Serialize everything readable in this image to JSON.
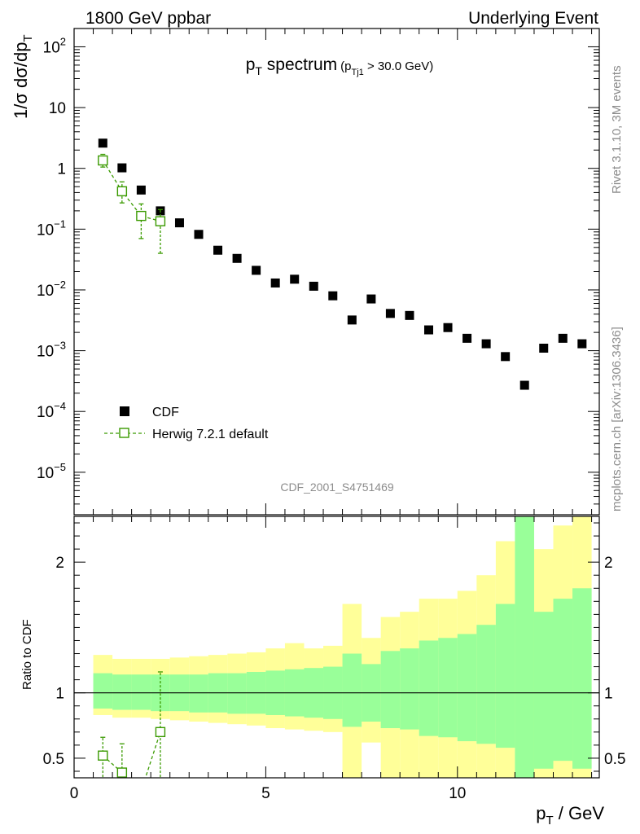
{
  "header": {
    "left": "1800 GeV ppbar",
    "right": "Underlying Event"
  },
  "side_labels": {
    "rivet": "Rivet 3.1.10,  3M events",
    "mcplots": "mcplots.cern.ch [arXiv:1306.3436]"
  },
  "chart_data": [
    {
      "type": "scatter",
      "title": "pT spectrum",
      "title_main": "p",
      "title_main_sub": "T",
      "title_main_rest": " spectrum",
      "title_cut_open": "(p",
      "title_cut_sub": "Tj1",
      "title_cut_rest": " > 30.0 GeV)",
      "ylabel": "1/σ dσ/dp",
      "ylabel_sub": "T",
      "yscale": "log",
      "ylim": [
        2e-06,
        200
      ],
      "xlim": [
        0,
        13.7
      ],
      "ytick_labels": [
        {
          "base": "10",
          "exp": "2",
          "value": 100
        },
        {
          "base": "10",
          "exp": "",
          "value": 10
        },
        {
          "base": "1",
          "exp": "",
          "value": 1
        },
        {
          "base": "10",
          "exp": "−1",
          "value": 0.1
        },
        {
          "base": "10",
          "exp": "−2",
          "value": 0.01
        },
        {
          "base": "10",
          "exp": "−3",
          "value": 0.001
        },
        {
          "base": "10",
          "exp": "−4",
          "value": 0.0001
        },
        {
          "base": "10",
          "exp": "−5",
          "value": 1e-05
        }
      ],
      "watermark": "CDF_2001_S4751469",
      "legend_position": "bottom-left",
      "series": [
        {
          "name": "CDF",
          "color": "#000000",
          "marker": "filled-square",
          "x": [
            0.75,
            1.25,
            1.75,
            2.25,
            2.75,
            3.25,
            3.75,
            4.25,
            4.75,
            5.25,
            5.75,
            6.25,
            6.75,
            7.25,
            7.75,
            8.25,
            8.75,
            9.25,
            9.75,
            10.25,
            10.75,
            11.25,
            11.75,
            12.25,
            12.75,
            13.25
          ],
          "y": [
            2.6,
            1.02,
            0.44,
            0.2,
            0.127,
            0.082,
            0.045,
            0.033,
            0.021,
            0.013,
            0.015,
            0.0115,
            0.008,
            0.0032,
            0.0071,
            0.0041,
            0.0038,
            0.0022,
            0.0024,
            0.0016,
            0.0013,
            0.0008,
            0.00027,
            0.0011,
            0.0016,
            0.0013
          ]
        },
        {
          "name": "Herwig 7.2.1 default",
          "color": "#3a9a00",
          "marker": "open-square",
          "line": "dashed",
          "x": [
            0.75,
            1.25,
            1.75,
            2.25
          ],
          "y": [
            1.35,
            0.42,
            0.165,
            0.135
          ],
          "yerr_low": [
            1.05,
            0.27,
            0.07,
            0.04
          ],
          "yerr_high": [
            1.7,
            0.6,
            0.26,
            0.21
          ]
        }
      ]
    },
    {
      "type": "area",
      "ylabel": "Ratio to CDF",
      "xlabel": "p",
      "xlabel_sub": "T",
      "xlabel_rest": " / GeV",
      "xlim": [
        0,
        13.7
      ],
      "ylim": [
        0.35,
        2.35
      ],
      "xtick_labels": [
        "0",
        "5",
        "10"
      ],
      "xtick_values": [
        0,
        5,
        10
      ],
      "ytick_labels": [
        "0.5",
        "1",
        "2"
      ],
      "ytick_values": [
        0.5,
        1,
        2
      ],
      "reference_line": 1,
      "bins": [
        0.5,
        1.0,
        1.5,
        2.0,
        2.5,
        3.0,
        3.5,
        4.0,
        4.5,
        5.0,
        5.5,
        6.0,
        6.5,
        7.0,
        7.5,
        8.0,
        8.5,
        9.0,
        9.5,
        10.0,
        10.5,
        11.0,
        11.5,
        12.0,
        12.5,
        13.0,
        13.5
      ],
      "yellow_band": {
        "color": "#ffff99",
        "low": [
          0.83,
          0.81,
          0.81,
          0.8,
          0.79,
          0.78,
          0.77,
          0.76,
          0.75,
          0.73,
          0.72,
          0.71,
          0.7,
          0.2,
          0.62,
          0.2,
          0.2,
          0.2,
          0.2,
          0.2,
          0.2,
          0.2,
          0.2,
          0.2,
          0.2,
          0.2
        ],
        "high": [
          1.29,
          1.26,
          1.26,
          1.26,
          1.27,
          1.28,
          1.29,
          1.3,
          1.31,
          1.34,
          1.38,
          1.34,
          1.36,
          1.68,
          1.42,
          1.58,
          1.62,
          1.72,
          1.72,
          1.78,
          1.9,
          2.16,
          2.38,
          2.1,
          2.28,
          2.38
        ]
      },
      "green_band": {
        "color": "#99ff99",
        "low": [
          0.88,
          0.87,
          0.87,
          0.86,
          0.86,
          0.85,
          0.85,
          0.84,
          0.84,
          0.83,
          0.82,
          0.81,
          0.8,
          0.74,
          0.78,
          0.73,
          0.72,
          0.67,
          0.66,
          0.63,
          0.61,
          0.58,
          0.2,
          0.42,
          0.48,
          0.42
        ],
        "high": [
          1.15,
          1.14,
          1.14,
          1.14,
          1.14,
          1.14,
          1.15,
          1.15,
          1.16,
          1.17,
          1.18,
          1.19,
          1.2,
          1.3,
          1.22,
          1.32,
          1.34,
          1.4,
          1.42,
          1.45,
          1.52,
          1.68,
          2.38,
          1.62,
          1.72,
          1.8
        ]
      },
      "series": [
        {
          "name": "Herwig 7.2.1 default",
          "color": "#3a9a00",
          "marker": "open-square",
          "line": "dashed",
          "x": [
            0.75,
            1.25,
            1.75,
            2.25
          ],
          "y": [
            0.52,
            0.39,
            0.25,
            0.7
          ],
          "yerr_low": [
            0.2,
            0.2,
            0.2,
            0.2
          ],
          "yerr_high": [
            0.66,
            0.61,
            0.3,
            1.16
          ]
        }
      ]
    }
  ]
}
